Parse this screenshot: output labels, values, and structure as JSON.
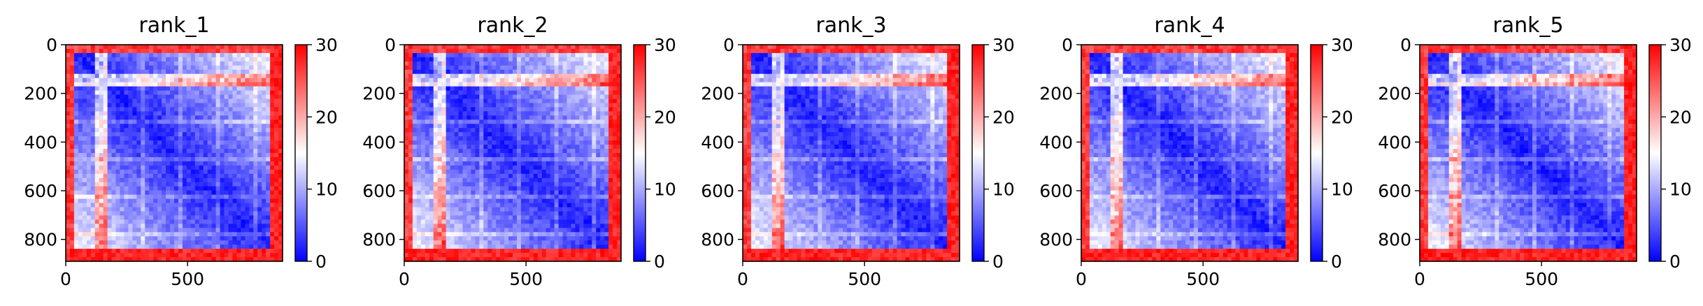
{
  "chart_data": [
    {
      "type": "heatmap",
      "title": "rank_1",
      "xlim": [
        0,
        890
      ],
      "ylim": [
        890,
        0
      ],
      "xticks": [
        "0",
        "500"
      ],
      "yticks": [
        "0",
        "200",
        "400",
        "600",
        "800"
      ],
      "colorbar": {
        "range": [
          0,
          30
        ],
        "ticks": [
          "0",
          "10",
          "20",
          "30"
        ],
        "colormap": "bwr"
      }
    },
    {
      "type": "heatmap",
      "title": "rank_2",
      "xlim": [
        0,
        890
      ],
      "ylim": [
        890,
        0
      ],
      "xticks": [
        "0",
        "500"
      ],
      "yticks": [
        "0",
        "200",
        "400",
        "600",
        "800"
      ],
      "colorbar": {
        "range": [
          0,
          30
        ],
        "ticks": [
          "0",
          "10",
          "20",
          "30"
        ],
        "colormap": "bwr"
      }
    },
    {
      "type": "heatmap",
      "title": "rank_3",
      "xlim": [
        0,
        890
      ],
      "ylim": [
        890,
        0
      ],
      "xticks": [
        "0",
        "500"
      ],
      "yticks": [
        "0",
        "200",
        "400",
        "600",
        "800"
      ],
      "colorbar": {
        "range": [
          0,
          30
        ],
        "ticks": [
          "0",
          "10",
          "20",
          "30"
        ],
        "colormap": "bwr"
      }
    },
    {
      "type": "heatmap",
      "title": "rank_4",
      "xlim": [
        0,
        890
      ],
      "ylim": [
        890,
        0
      ],
      "xticks": [
        "0",
        "500"
      ],
      "yticks": [
        "0",
        "200",
        "400",
        "600",
        "800"
      ],
      "colorbar": {
        "range": [
          0,
          30
        ],
        "ticks": [
          "0",
          "10",
          "20",
          "30"
        ],
        "colormap": "bwr"
      }
    },
    {
      "type": "heatmap",
      "title": "rank_5",
      "xlim": [
        0,
        890
      ],
      "ylim": [
        890,
        0
      ],
      "xticks": [
        "0",
        "500"
      ],
      "yticks": [
        "0",
        "200",
        "400",
        "600",
        "800"
      ],
      "colorbar": {
        "range": [
          0,
          30
        ],
        "ticks": [
          "0",
          "10",
          "20",
          "30"
        ],
        "colormap": "bwr"
      }
    }
  ],
  "colors": {
    "low": "#0000ff",
    "mid": "#ffffff",
    "high": "#ff0000"
  }
}
